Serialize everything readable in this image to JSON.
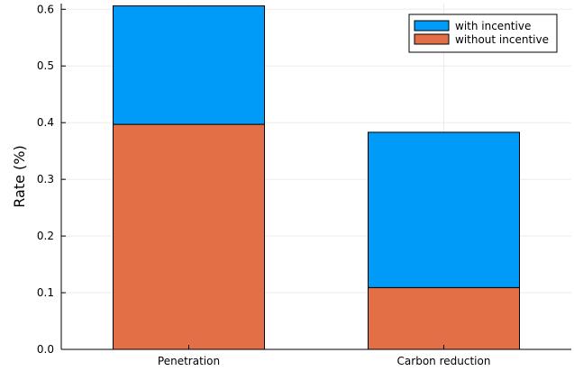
{
  "chart_data": {
    "type": "bar",
    "stacked": true,
    "categories": [
      "Penetration",
      "Carbon reduction"
    ],
    "series": [
      {
        "name": "without incentive",
        "values": [
          0.397,
          0.109
        ],
        "color": "#e26f46"
      },
      {
        "name": "with incentive",
        "values": [
          0.209,
          0.274
        ],
        "color": "#009af9"
      }
    ],
    "totals": [
      0.606,
      0.383
    ],
    "ylabel": "Rate (%)",
    "xlabel": "",
    "title": "",
    "ylim": [
      0,
      0.61
    ],
    "yticks": [
      "0.0",
      "0.1",
      "0.2",
      "0.3",
      "0.4",
      "0.5",
      "0.6"
    ],
    "grid": true,
    "legend_position": "top-right",
    "legend_order": [
      "with incentive",
      "without incentive"
    ]
  }
}
